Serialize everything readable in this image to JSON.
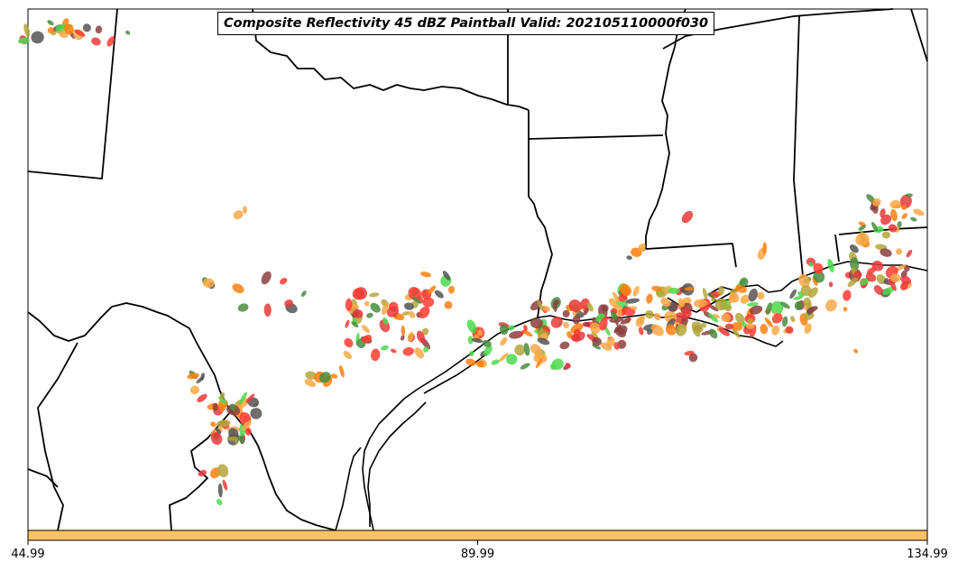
{
  "map": {
    "title": "Composite Reflectivity 45 dBZ Paintball Valid: 202105110000f030",
    "colorbar": {
      "color": "#fbc264",
      "tick_labels": [
        "44.99",
        "89.99",
        "134.99"
      ]
    },
    "palette": {
      "member_colors": [
        "#ff3b30",
        "#ff7f0e",
        "#4bd94b",
        "#8c3f3f",
        "#fba843",
        "#b5a63a",
        "#4a8c3f",
        "#e83a3a",
        "#555555",
        "#f7a94a"
      ]
    }
  }
}
